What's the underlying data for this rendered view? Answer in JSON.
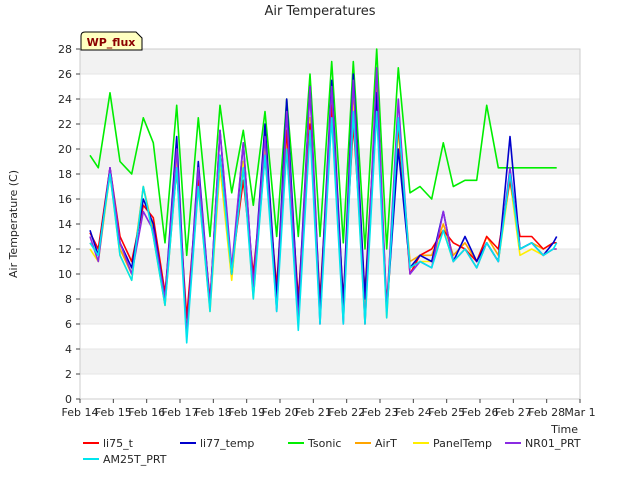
{
  "chart_data": {
    "type": "line",
    "title": "Air Temperatures",
    "xlabel": "Time",
    "ylabel": "Air Temperature (C)",
    "badge": "WP_flux",
    "ylim": [
      0,
      28
    ],
    "yticks": [
      0,
      2,
      4,
      6,
      8,
      10,
      12,
      14,
      16,
      18,
      20,
      22,
      24,
      26,
      28
    ],
    "xlim": [
      0,
      15
    ],
    "xticks": [
      {
        "v": 0,
        "label": "Feb 14"
      },
      {
        "v": 1,
        "label": "Feb 15"
      },
      {
        "v": 2,
        "label": "Feb 16"
      },
      {
        "v": 3,
        "label": "Feb 17"
      },
      {
        "v": 4,
        "label": "Feb 18"
      },
      {
        "v": 5,
        "label": "Feb 19"
      },
      {
        "v": 6,
        "label": "Feb 20"
      },
      {
        "v": 7,
        "label": "Feb 21"
      },
      {
        "v": 8,
        "label": "Feb 22"
      },
      {
        "v": 9,
        "label": "Feb 23"
      },
      {
        "v": 10,
        "label": "Feb 24"
      },
      {
        "v": 11,
        "label": "Feb 25"
      },
      {
        "v": 12,
        "label": "Feb 26"
      },
      {
        "v": 13,
        "label": "Feb 27"
      },
      {
        "v": 14,
        "label": "Feb 28"
      },
      {
        "v": 15,
        "label": "Mar 1"
      }
    ],
    "grid": "horizontal bands",
    "legend_position": "bottom",
    "x": [
      0.3,
      0.55,
      0.9,
      1.2,
      1.55,
      1.9,
      2.2,
      2.55,
      2.9,
      3.2,
      3.55,
      3.9,
      4.2,
      4.55,
      4.9,
      5.2,
      5.55,
      5.9,
      6.2,
      6.55,
      6.9,
      7.2,
      7.55,
      7.9,
      8.2,
      8.55,
      8.9,
      9.2,
      9.55,
      9.9,
      10.2,
      10.55,
      10.9,
      11.2,
      11.55,
      11.9,
      12.2,
      12.55,
      12.9,
      13.2,
      13.55,
      13.9,
      14.2,
      14.3
    ],
    "series": [
      {
        "name": "li75_t",
        "color": "#ff0000",
        "values": [
          13.3,
          12.0,
          18.5,
          13.0,
          11.0,
          15.5,
          14.5,
          8.5,
          18.5,
          6.5,
          17.5,
          8.0,
          19.5,
          10.5,
          17.5,
          10.0,
          19.5,
          9.0,
          21.5,
          8.0,
          22.0,
          8.0,
          23.5,
          8.0,
          22.0,
          8.5,
          24.5,
          7.5,
          22.0,
          10.0,
          11.5,
          12.0,
          13.5,
          12.5,
          12.0,
          11.0,
          13.0,
          12.0,
          17.5,
          13.0,
          13.0,
          12.0,
          12.5,
          12.5
        ]
      },
      {
        "name": "li77_temp",
        "color": "#0000cc",
        "values": [
          13.5,
          11.5,
          18.5,
          12.5,
          10.5,
          16.0,
          14.0,
          8.0,
          21.0,
          5.0,
          19.0,
          7.5,
          21.5,
          10.0,
          20.5,
          9.0,
          22.0,
          8.0,
          24.0,
          7.0,
          25.0,
          7.0,
          25.5,
          7.5,
          26.0,
          8.0,
          24.5,
          7.0,
          20.0,
          10.5,
          11.5,
          11.0,
          15.0,
          11.0,
          13.0,
          11.0,
          12.5,
          11.0,
          21.0,
          12.0,
          12.5,
          11.5,
          12.5,
          13.0
        ]
      },
      {
        "name": "Tsonic",
        "color": "#00ee00",
        "values": [
          19.5,
          18.5,
          24.5,
          19.0,
          18.0,
          22.5,
          20.5,
          12.5,
          23.5,
          11.5,
          22.5,
          13.0,
          23.5,
          16.5,
          21.5,
          15.5,
          23.0,
          13.0,
          24.0,
          13.0,
          26.0,
          13.0,
          27.0,
          12.5,
          27.0,
          12.0,
          28.0,
          12.0,
          26.5,
          16.5,
          17.0,
          16.0,
          20.5,
          17.0,
          17.5,
          17.5,
          23.5,
          18.5,
          18.5,
          18.5,
          18.5,
          18.5,
          18.5,
          18.5
        ]
      },
      {
        "name": "AirT",
        "color": "#ffa500",
        "values": [
          12.5,
          11.5,
          18.0,
          12.0,
          10.0,
          17.0,
          13.5,
          7.5,
          18.5,
          5.5,
          17.5,
          7.5,
          19.5,
          10.0,
          19.0,
          8.5,
          19.5,
          8.0,
          21.0,
          7.0,
          22.5,
          7.0,
          24.0,
          7.0,
          24.5,
          6.5,
          25.0,
          7.0,
          22.0,
          11.0,
          11.5,
          11.5,
          14.0,
          11.5,
          12.5,
          11.0,
          13.0,
          11.5,
          18.0,
          12.0,
          12.5,
          12.0,
          12.5,
          12.5
        ]
      },
      {
        "name": "PanelTemp",
        "color": "#ffee00",
        "values": [
          12.0,
          11.0,
          18.0,
          11.5,
          9.5,
          17.0,
          13.0,
          7.5,
          19.5,
          5.0,
          17.0,
          7.0,
          18.5,
          9.5,
          19.0,
          8.0,
          20.0,
          7.5,
          21.0,
          6.5,
          22.5,
          6.5,
          23.5,
          6.5,
          23.5,
          6.0,
          24.0,
          6.5,
          21.5,
          10.5,
          11.0,
          11.0,
          13.5,
          11.0,
          12.0,
          10.5,
          12.5,
          11.0,
          17.5,
          11.5,
          12.0,
          11.5,
          12.0,
          12.0
        ]
      },
      {
        "name": "NR01_PRT",
        "color": "#8a2be2",
        "values": [
          13.0,
          11.0,
          18.5,
          12.5,
          10.0,
          15.0,
          13.5,
          8.0,
          20.0,
          5.0,
          18.5,
          7.5,
          21.5,
          10.5,
          20.5,
          9.0,
          21.0,
          7.0,
          23.0,
          6.0,
          25.0,
          6.0,
          25.0,
          6.0,
          25.5,
          6.0,
          26.5,
          7.0,
          24.0,
          10.0,
          11.0,
          10.5,
          15.0,
          11.0,
          12.0,
          10.5,
          12.5,
          11.0,
          18.5,
          12.0,
          12.5,
          11.5,
          12.0,
          12.0
        ]
      },
      {
        "name": "AM25T_PRT",
        "color": "#00e5ee",
        "values": [
          12.5,
          11.5,
          18.0,
          11.5,
          9.5,
          17.0,
          13.0,
          7.5,
          18.5,
          4.5,
          17.0,
          7.0,
          19.5,
          10.0,
          18.5,
          8.0,
          19.5,
          7.0,
          20.0,
          5.5,
          21.5,
          6.0,
          22.5,
          6.0,
          23.0,
          6.0,
          23.0,
          6.5,
          22.5,
          10.5,
          11.0,
          10.5,
          13.5,
          11.0,
          12.0,
          10.5,
          12.5,
          11.0,
          18.0,
          12.0,
          12.5,
          11.5,
          12.0,
          12.5
        ]
      }
    ]
  }
}
